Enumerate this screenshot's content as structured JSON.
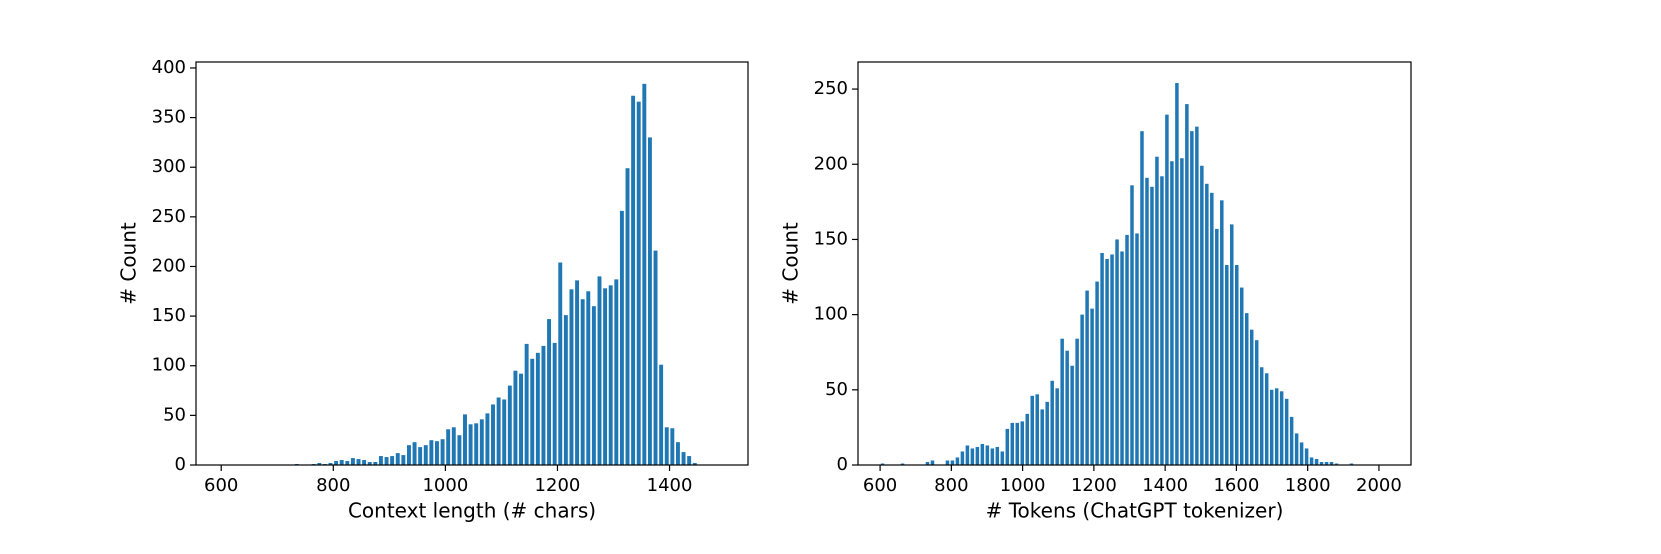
{
  "chart_data": [
    {
      "type": "histogram",
      "xlabel": "Context length (# chars)",
      "ylabel": "# Count",
      "color": "#1f77b4",
      "bins": [
        580,
        590,
        600,
        610,
        620,
        630,
        640,
        650,
        660,
        670,
        680,
        690,
        700,
        710,
        720,
        730,
        740,
        750,
        760,
        770,
        780,
        790,
        800,
        810,
        820,
        830,
        840,
        850,
        860,
        870,
        880,
        890,
        900,
        910,
        920,
        930,
        940,
        950,
        960,
        970,
        980,
        990,
        1000,
        1010,
        1020,
        1030,
        1040,
        1050,
        1060,
        1070,
        1080,
        1090,
        1100,
        1110,
        1120,
        1130,
        1140,
        1150,
        1160,
        1170,
        1180,
        1190,
        1200,
        1210,
        1220,
        1230,
        1240,
        1250,
        1260,
        1270,
        1280,
        1290,
        1300,
        1310,
        1320,
        1330,
        1340,
        1350,
        1360,
        1370,
        1380,
        1390,
        1400,
        1410,
        1420,
        1430,
        1440,
        1450,
        1460
      ],
      "values": [
        0,
        0,
        0,
        0,
        0,
        0,
        0,
        0,
        0,
        0,
        0,
        0,
        0,
        0,
        0,
        1,
        0,
        0,
        1,
        2,
        1,
        2,
        4,
        5,
        4,
        7,
        6,
        5,
        3,
        3,
        9,
        8,
        9,
        12,
        10,
        20,
        23,
        18,
        20,
        25,
        24,
        26,
        36,
        38,
        30,
        51,
        41,
        42,
        46,
        52,
        61,
        68,
        66,
        80,
        95,
        92,
        122,
        107,
        113,
        120,
        147,
        123,
        204,
        151,
        177,
        186,
        167,
        175,
        160,
        190,
        178,
        181,
        187,
        256,
        299,
        372,
        366,
        384,
        330,
        216,
        101,
        38,
        37,
        23,
        13,
        9,
        2,
        0
      ],
      "xlim": [
        555,
        1540
      ],
      "xticks": [
        600,
        800,
        1000,
        1200,
        1400
      ],
      "ylim": [
        0,
        406
      ],
      "yticks": [
        0,
        50,
        100,
        150,
        200,
        250,
        300,
        350,
        400
      ]
    },
    {
      "type": "histogram",
      "xlabel": "# Tokens (ChatGPT tokenizer)",
      "ylabel": "# Count",
      "color": "#1f77b4",
      "bins": [
        600,
        614,
        628,
        642,
        656,
        670,
        684,
        698,
        712,
        726,
        740,
        754,
        768,
        782,
        796,
        810,
        824,
        838,
        852,
        866,
        880,
        894,
        908,
        922,
        936,
        950,
        964,
        978,
        992,
        1006,
        1020,
        1034,
        1048,
        1062,
        1076,
        1090,
        1104,
        1118,
        1132,
        1146,
        1160,
        1174,
        1188,
        1202,
        1216,
        1230,
        1244,
        1258,
        1272,
        1286,
        1300,
        1314,
        1328,
        1342,
        1356,
        1370,
        1384,
        1398,
        1412,
        1426,
        1440,
        1454,
        1468,
        1482,
        1496,
        1510,
        1524,
        1538,
        1552,
        1566,
        1580,
        1594,
        1608,
        1622,
        1636,
        1650,
        1664,
        1678,
        1692,
        1706,
        1720,
        1734,
        1748,
        1762,
        1776,
        1790,
        1804,
        1818,
        1832,
        1846,
        1860,
        1874,
        1888,
        1902,
        1916,
        1930
      ],
      "values": [
        1,
        0,
        0,
        0,
        1,
        0,
        0,
        0,
        0,
        2,
        3,
        0,
        0,
        3,
        3,
        5,
        9,
        13,
        11,
        12,
        14,
        13,
        11,
        12,
        9,
        24,
        28,
        28,
        29,
        34,
        46,
        47,
        37,
        42,
        56,
        51,
        84,
        76,
        66,
        84,
        100,
        116,
        104,
        122,
        141,
        137,
        140,
        150,
        142,
        153,
        186,
        154,
        222,
        191,
        185,
        205,
        192,
        233,
        202,
        254,
        204,
        240,
        222,
        225,
        199,
        187,
        181,
        157,
        176,
        133,
        160,
        133,
        118,
        101,
        90,
        83,
        65,
        61,
        50,
        51,
        49,
        44,
        32,
        21,
        15,
        11,
        5,
        4,
        2,
        2,
        2,
        1,
        0,
        0,
        1
      ],
      "xlim": [
        538,
        2090
      ],
      "xticks": [
        600,
        800,
        1000,
        1200,
        1400,
        1600,
        1800,
        2000
      ],
      "ylim": [
        0,
        268
      ],
      "yticks": [
        0,
        50,
        100,
        150,
        200,
        250
      ]
    }
  ]
}
